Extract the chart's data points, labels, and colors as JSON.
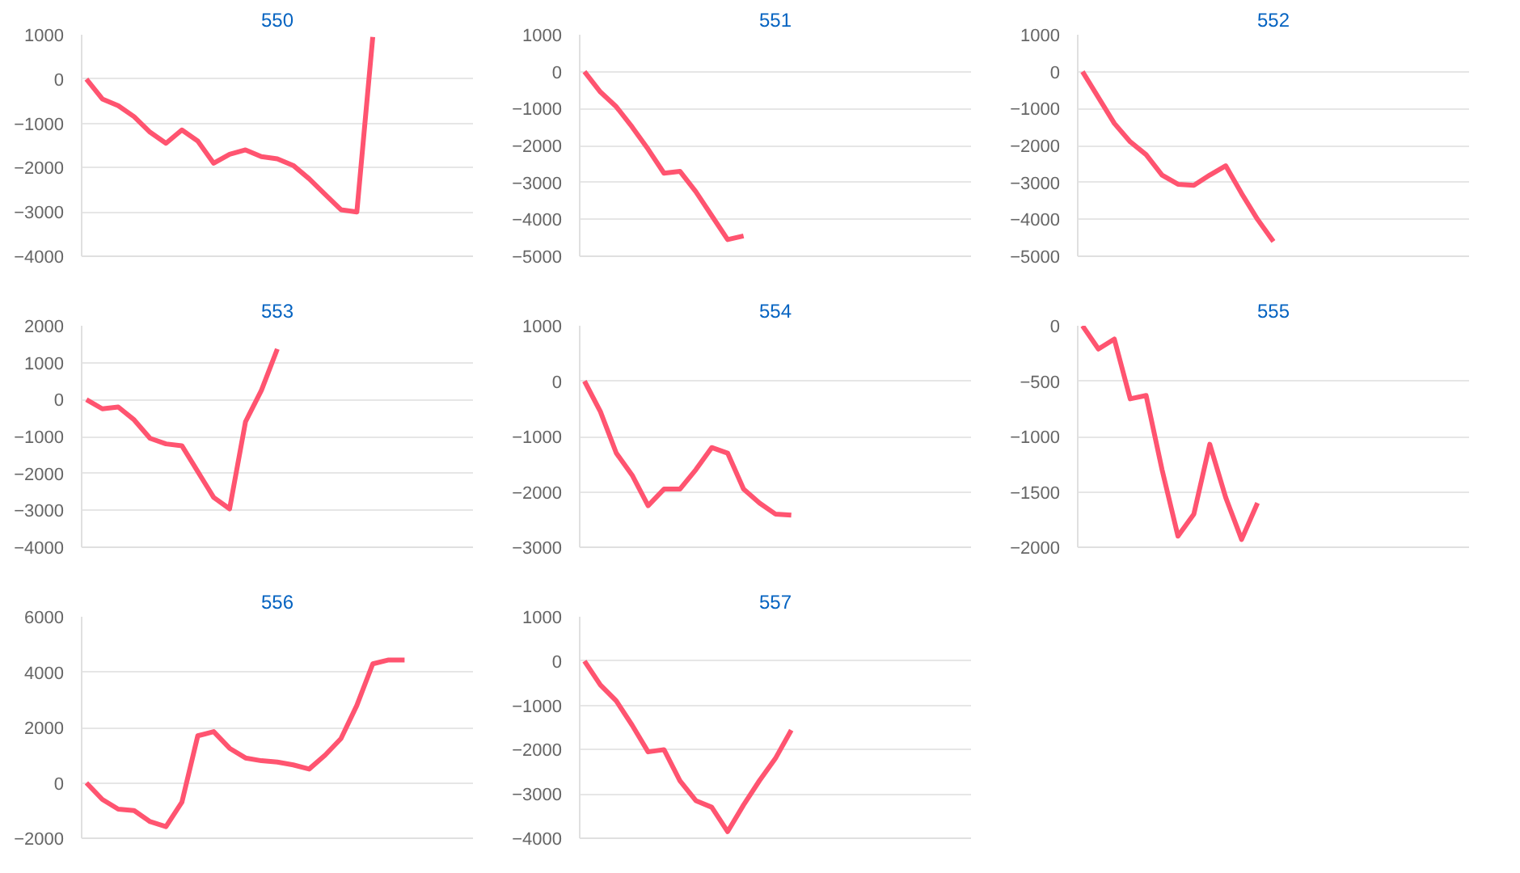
{
  "chart_data": [
    {
      "type": "line",
      "title": "550",
      "categories": [
        null,
        null,
        null,
        null,
        null,
        null,
        null,
        null,
        null,
        null,
        null,
        null,
        null,
        null,
        null,
        null,
        null,
        null,
        null,
        null,
        null,
        null,
        null,
        null,
        null
      ],
      "series": [
        {
          "color": "#ff5470",
          "values": [
            0,
            -450,
            -600,
            -850,
            -1200,
            -1450,
            -1150,
            -1400,
            -1900,
            -1700,
            -1600,
            -1750,
            -1800,
            -1950,
            -2250,
            -2600,
            -2950,
            -3000,
            950,
            null,
            null,
            null,
            null,
            null,
            null
          ]
        }
      ],
      "ylim": [
        -4000,
        1000
      ],
      "yticks": [
        -4000,
        -3000,
        -2000,
        -1000,
        0,
        1000
      ],
      "grid": "y",
      "tick_labels": "y"
    },
    {
      "type": "line",
      "title": "551",
      "categories": [
        null,
        null,
        null,
        null,
        null,
        null,
        null,
        null,
        null,
        null,
        null,
        null,
        null,
        null,
        null,
        null,
        null,
        null,
        null,
        null,
        null,
        null,
        null,
        null,
        null
      ],
      "series": [
        {
          "color": "#ff5470",
          "values": [
            0,
            -550,
            -950,
            -1500,
            -2100,
            -2750,
            -2700,
            -3250,
            -3900,
            -4550,
            -4450,
            null,
            null,
            null,
            null,
            null,
            null,
            null,
            null,
            null,
            null,
            null,
            null,
            null,
            null
          ]
        }
      ],
      "ylim": [
        -5000,
        1000
      ],
      "yticks": [
        -5000,
        -4000,
        -3000,
        -2000,
        -1000,
        0,
        1000
      ],
      "grid": "y",
      "tick_labels": "y"
    },
    {
      "type": "line",
      "title": "552",
      "categories": [
        null,
        null,
        null,
        null,
        null,
        null,
        null,
        null,
        null,
        null,
        null,
        null,
        null,
        null,
        null,
        null,
        null,
        null,
        null,
        null,
        null,
        null,
        null,
        null,
        null
      ],
      "series": [
        {
          "color": "#ff5470",
          "values": [
            0,
            -700,
            -1400,
            -1900,
            -2250,
            -2800,
            -3050,
            -3080,
            -2800,
            -2550,
            -3300,
            -4000,
            -4600,
            null,
            null,
            null,
            null,
            null,
            null,
            null,
            null,
            null,
            null,
            null,
            null
          ]
        }
      ],
      "ylim": [
        -5000,
        1000
      ],
      "yticks": [
        -5000,
        -4000,
        -3000,
        -2000,
        -1000,
        0,
        1000
      ],
      "grid": "y",
      "tick_labels": "y"
    },
    {
      "type": "line",
      "title": "553",
      "categories": [
        null,
        null,
        null,
        null,
        null,
        null,
        null,
        null,
        null,
        null,
        null,
        null,
        null,
        null,
        null,
        null,
        null,
        null,
        null,
        null,
        null,
        null,
        null,
        null,
        null
      ],
      "series": [
        {
          "color": "#ff5470",
          "values": [
            0,
            -250,
            -200,
            -550,
            -1050,
            -1200,
            -1250,
            -1950,
            -2650,
            -2960,
            -600,
            250,
            1370,
            null,
            null,
            null,
            null,
            null,
            null,
            null,
            null,
            null,
            null,
            null,
            null
          ]
        }
      ],
      "ylim": [
        -4000,
        2000
      ],
      "yticks": [
        -4000,
        -3000,
        -2000,
        -1000,
        0,
        1000,
        2000
      ],
      "grid": "y",
      "tick_labels": "y"
    },
    {
      "type": "line",
      "title": "554",
      "categories": [
        null,
        null,
        null,
        null,
        null,
        null,
        null,
        null,
        null,
        null,
        null,
        null,
        null,
        null,
        null,
        null,
        null,
        null,
        null,
        null,
        null,
        null,
        null,
        null,
        null
      ],
      "series": [
        {
          "color": "#ff5470",
          "values": [
            0,
            -550,
            -1300,
            -1700,
            -2250,
            -1950,
            -1950,
            -1600,
            -1200,
            -1300,
            -1950,
            -2200,
            -2400,
            -2420,
            null,
            null,
            null,
            null,
            null,
            null,
            null,
            null,
            null,
            null,
            null
          ]
        }
      ],
      "ylim": [
        -3000,
        1000
      ],
      "yticks": [
        -3000,
        -2000,
        -1000,
        0,
        1000
      ],
      "grid": "y",
      "tick_labels": "y"
    },
    {
      "type": "line",
      "title": "555",
      "categories": [
        null,
        null,
        null,
        null,
        null,
        null,
        null,
        null,
        null,
        null,
        null,
        null,
        null,
        null,
        null,
        null,
        null,
        null,
        null,
        null,
        null,
        null,
        null,
        null,
        null
      ],
      "series": [
        {
          "color": "#ff5470",
          "values": [
            0,
            -210,
            -120,
            -660,
            -630,
            -1300,
            -1900,
            -1700,
            -1070,
            -1550,
            -1930,
            -1600,
            null,
            null,
            null,
            null,
            null,
            null,
            null,
            null,
            null,
            null,
            null,
            null,
            null
          ]
        }
      ],
      "ylim": [
        -2000,
        0
      ],
      "yticks": [
        -2000,
        -1500,
        -1000,
        -500,
        0
      ],
      "grid": "y",
      "tick_labels": "y"
    },
    {
      "type": "line",
      "title": "556",
      "categories": [
        null,
        null,
        null,
        null,
        null,
        null,
        null,
        null,
        null,
        null,
        null,
        null,
        null,
        null,
        null,
        null,
        null,
        null,
        null,
        null,
        null,
        null,
        null,
        null,
        null
      ],
      "series": [
        {
          "color": "#ff5470",
          "values": [
            0,
            -600,
            -950,
            -1000,
            -1400,
            -1580,
            -700,
            1700,
            1850,
            1250,
            900,
            800,
            750,
            650,
            500,
            1000,
            1600,
            2800,
            4300,
            4440,
            4440,
            null,
            null,
            null,
            null
          ]
        }
      ],
      "ylim": [
        -2000,
        6000
      ],
      "yticks": [
        -2000,
        0,
        2000,
        4000,
        6000
      ],
      "grid": "y",
      "tick_labels": "y"
    },
    {
      "type": "line",
      "title": "557",
      "categories": [
        null,
        null,
        null,
        null,
        null,
        null,
        null,
        null,
        null,
        null,
        null,
        null,
        null,
        null,
        null,
        null,
        null,
        null,
        null,
        null,
        null,
        null,
        null,
        null,
        null
      ],
      "series": [
        {
          "color": "#ff5470",
          "values": [
            0,
            -540,
            -900,
            -1450,
            -2050,
            -2000,
            -2700,
            -3150,
            -3300,
            -3850,
            -3250,
            -2700,
            -2200,
            -1560,
            null,
            null,
            null,
            null,
            null,
            null,
            null,
            null,
            null,
            null,
            null
          ]
        }
      ],
      "ylim": [
        -4000,
        1000
      ],
      "yticks": [
        -4000,
        -3000,
        -2000,
        -1000,
        0,
        1000
      ],
      "grid": "y",
      "tick_labels": "y"
    }
  ]
}
